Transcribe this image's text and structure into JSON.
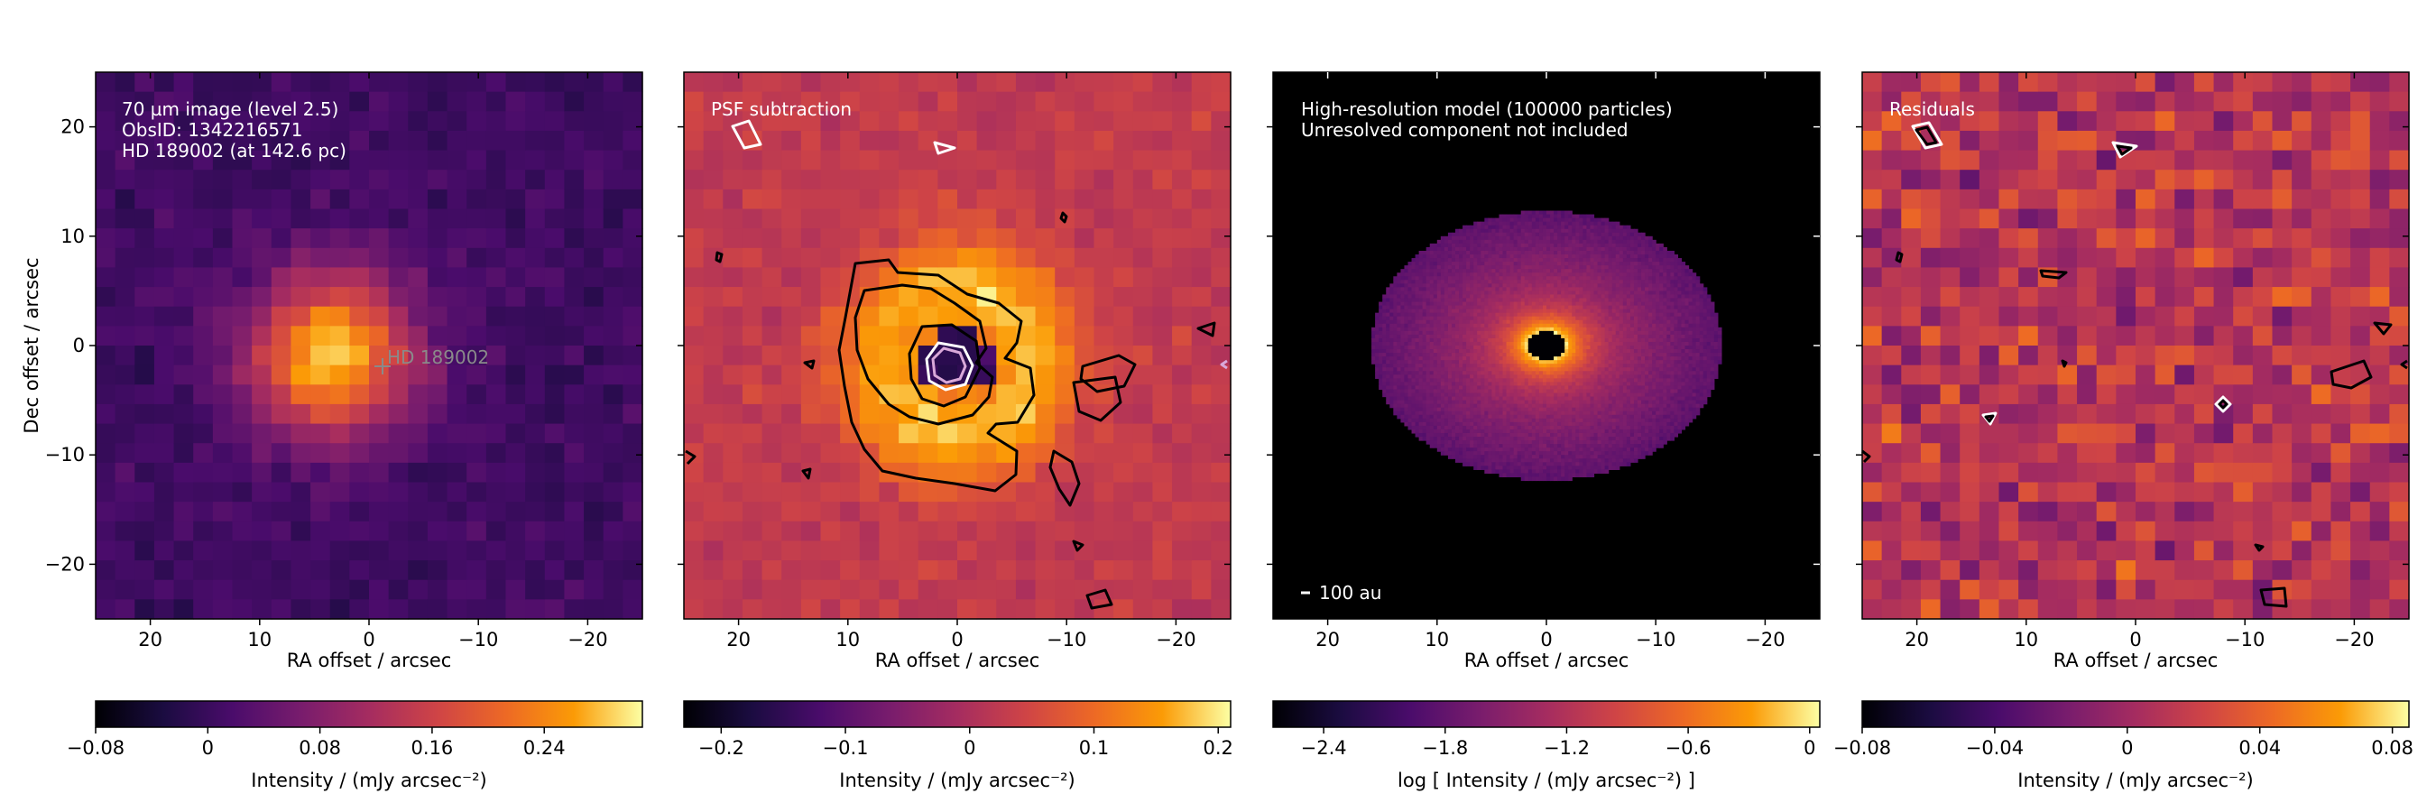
{
  "chart_data": [
    {
      "type": "heatmap",
      "annotation_lines": [
        "70 µm image (level 2.5)",
        "ObsID: 1342216571",
        "HD 189002 (at 142.6 pc)"
      ],
      "star_label": "HD 189002",
      "star_position_arcsec": [
        -1.5,
        -1.8
      ],
      "xlabel": "RA offset / arcsec",
      "ylabel": "Dec offset / arcsec",
      "x_ticks": [
        20,
        10,
        0,
        -10,
        -20
      ],
      "y_ticks": [
        20,
        10,
        0,
        -10,
        -20
      ],
      "xlim": [
        25,
        -25
      ],
      "ylim": [
        -25,
        25
      ],
      "colormap": "inferno",
      "colorbar": {
        "label": "Intensity / (mJy arcsec⁻²)",
        "ticks": [
          "-0.08",
          "0",
          "0.08",
          "0.16",
          "0.24"
        ],
        "range": [
          -0.08,
          0.31
        ]
      },
      "emission_peak_mJy_arcsec2": 0.28
    },
    {
      "type": "heatmap",
      "annotation_lines": [
        "PSF subtraction"
      ],
      "xlabel": "RA offset / arcsec",
      "x_ticks": [
        20,
        10,
        0,
        -10,
        -20
      ],
      "xlim": [
        25,
        -25
      ],
      "ylim": [
        -25,
        25
      ],
      "colormap": "inferno",
      "contours": "black positive contours, white negative contours",
      "colorbar": {
        "label": "Intensity / (mJy arcsec⁻²)",
        "ticks": [
          "-0.2",
          "-0.1",
          "0",
          "0.1",
          "0.2"
        ],
        "range": [
          -0.23,
          0.21
        ]
      }
    },
    {
      "type": "heatmap",
      "annotation_lines": [
        "High-resolution model (100000 particles)",
        "Unresolved component not included"
      ],
      "scale_bar_label": "100 au",
      "xlabel": "RA offset / arcsec",
      "x_ticks": [
        20,
        10,
        0,
        -10,
        -20
      ],
      "xlim": [
        25,
        -25
      ],
      "ylim": [
        -25,
        25
      ],
      "colormap": "inferno",
      "colorbar": {
        "label": "log [ Intensity / (mJy arcsec⁻²) ]",
        "ticks": [
          "-2.4",
          "-1.8",
          "-1.2",
          "-0.6",
          "0"
        ],
        "range": [
          -2.65,
          0.05
        ]
      }
    },
    {
      "type": "heatmap",
      "annotation_lines": [
        "Residuals"
      ],
      "xlabel": "RA offset / arcsec",
      "x_ticks": [
        20,
        10,
        0,
        -10,
        -20
      ],
      "xlim": [
        25,
        -25
      ],
      "ylim": [
        -25,
        25
      ],
      "colormap": "inferno",
      "colorbar": {
        "label": "Intensity / (mJy arcsec⁻²)",
        "ticks": [
          "-0.08",
          "-0.04",
          "0",
          "0.04",
          "0.08"
        ],
        "range": [
          -0.08,
          0.085
        ]
      }
    }
  ]
}
